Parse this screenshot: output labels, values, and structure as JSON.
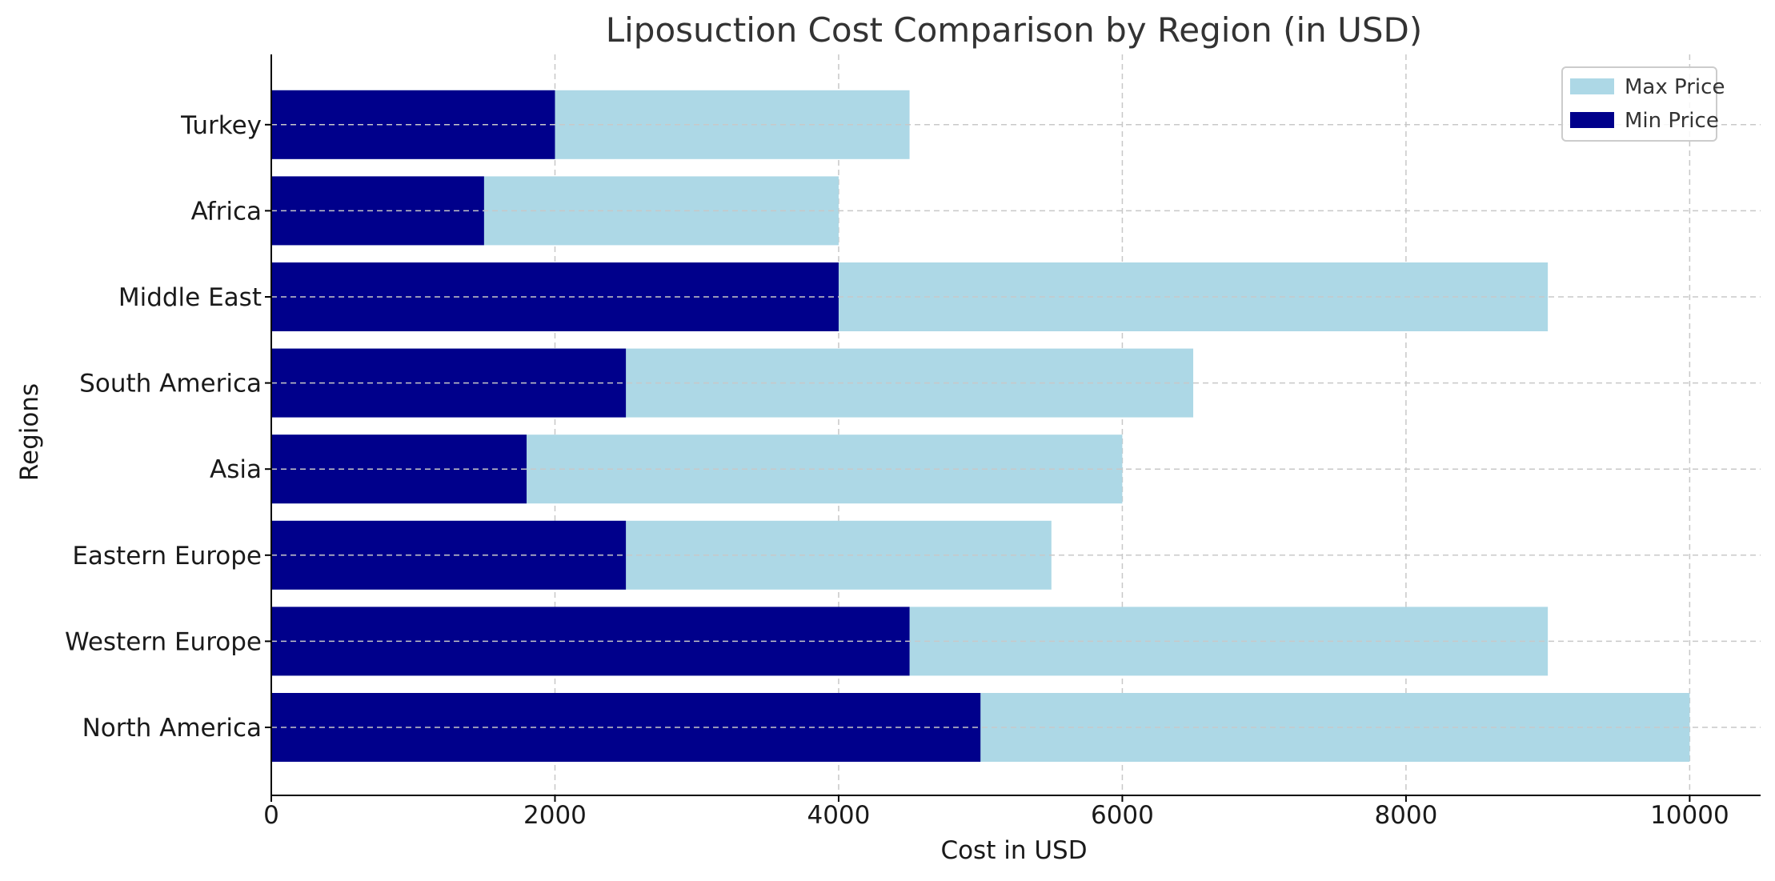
{
  "chart_data": {
    "type": "bar",
    "orientation": "horizontal",
    "stacking": "overlay",
    "title": "Liposuction Cost Comparison by Region (in USD)",
    "xlabel": "Cost in USD",
    "ylabel": "Regions",
    "categories": [
      "North America",
      "Western Europe",
      "Eastern Europe",
      "Asia",
      "South America",
      "Middle East",
      "Africa",
      "Turkey"
    ],
    "series": [
      {
        "name": "Max Price",
        "color": "#add8e6",
        "values": [
          10000,
          9000,
          5500,
          6000,
          6500,
          9000,
          4000,
          4500
        ]
      },
      {
        "name": "Min Price",
        "color": "#00008b",
        "values": [
          5000,
          4500,
          2500,
          1800,
          2500,
          4000,
          1500,
          2000
        ]
      }
    ],
    "xlim": [
      0,
      10500
    ],
    "xticks": [
      0,
      2000,
      4000,
      6000,
      8000,
      10000
    ],
    "xtick_labels": [
      "0",
      "2000",
      "4000",
      "6000",
      "8000",
      "10000"
    ],
    "grid": true,
    "legend_position": "top-right"
  }
}
